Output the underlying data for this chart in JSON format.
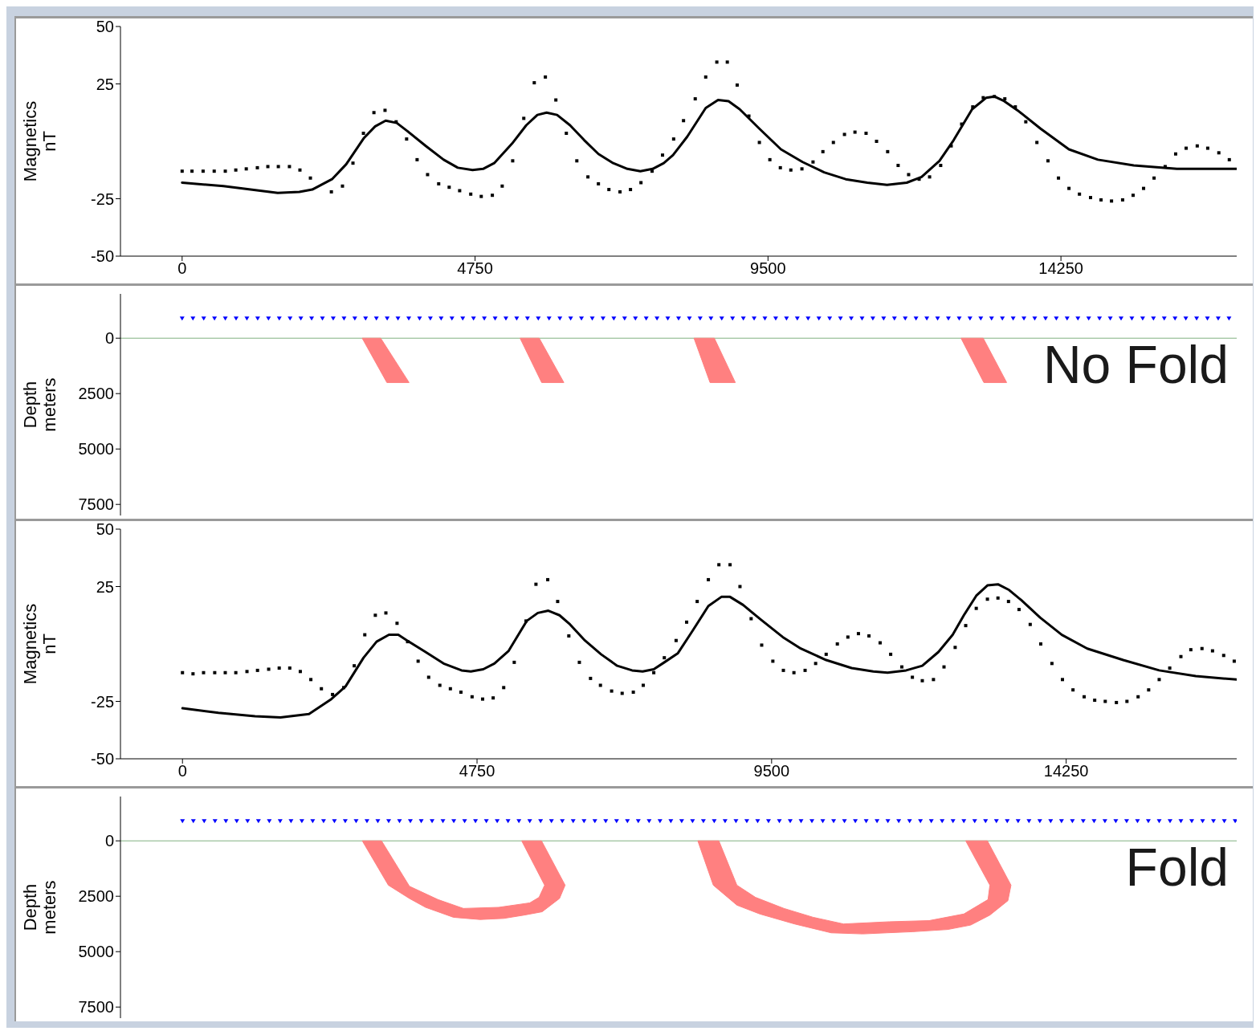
{
  "chart_data": [
    {
      "type": "line",
      "ylabel": "Magnetics\nnT",
      "xlim": [
        -1000,
        17100
      ],
      "xticks": [
        0,
        4750,
        9500,
        14250
      ],
      "ylim": [
        -50,
        50
      ],
      "yticks": [
        -50,
        -25,
        25,
        50
      ],
      "series": [
        {
          "type": "scatter",
          "marker": "square",
          "color": "#000000",
          "x": [
            0,
            160,
            340,
            520,
            700,
            870,
            1040,
            1220,
            1390,
            1560,
            1740,
            1910,
            2080,
            2420,
            2600,
            2770,
            2940,
            3110,
            3290,
            3470,
            3640,
            3810,
            3980,
            4160,
            4330,
            4500,
            4680,
            4850,
            5030,
            5190,
            5360,
            5540,
            5710,
            5890,
            6060,
            6230,
            6400,
            6580,
            6750,
            6920,
            7100,
            7270,
            7440,
            7620,
            7790,
            7970,
            8130,
            8320,
            8490,
            8670,
            8840,
            9000,
            9190,
            9360,
            9530,
            9700,
            9870,
            10050,
            10230,
            10390,
            10560,
            10740,
            10910,
            11090,
            11260,
            11440,
            11610,
            11780,
            11950,
            12120,
            12300,
            12470,
            12640,
            12820,
            12990,
            13170,
            13340,
            13510,
            13680,
            13860,
            14040,
            14210,
            14380,
            14550,
            14730,
            14900,
            15070,
            15250,
            15420,
            15590,
            15760,
            15940,
            16110,
            16280,
            16460,
            16630,
            16810,
            16980
          ],
          "values": [
            -13,
            -13,
            -13,
            -13,
            -13,
            -12.5,
            -12,
            -11.5,
            -11,
            -11,
            -11,
            -12.5,
            -16,
            -22,
            -19.5,
            -9.5,
            3.5,
            12.5,
            13.5,
            8.5,
            1,
            -8,
            -14.5,
            -18.5,
            -20,
            -21.5,
            -23,
            -24,
            -23.5,
            -19.5,
            -8.5,
            10,
            25.5,
            28,
            18,
            3.5,
            -8.5,
            -15.5,
            -18.5,
            -21,
            -22,
            -21,
            -18,
            -13,
            -6,
            1,
            9,
            18.5,
            28,
            34.5,
            34.5,
            24.5,
            11,
            -0.5,
            -8,
            -11.5,
            -12.5,
            -12,
            -9,
            -4.5,
            -0.5,
            3,
            4,
            3.5,
            0,
            -4.5,
            -10.5,
            -14.5,
            -16.5,
            -15.5,
            -10.5,
            -2,
            7.5,
            15,
            19,
            19.5,
            18.5,
            15,
            8.5,
            -0.5,
            -8.5,
            -16,
            -20.5,
            -23,
            -24.5,
            -25.5,
            -26,
            -25.5,
            -23.5,
            -20.5,
            -16,
            -11,
            -5.5,
            -3,
            -2,
            -3,
            -5,
            -8
          ]
        },
        {
          "type": "line",
          "color": "#000000",
          "x": [
            0,
            670,
            1550,
            1900,
            2110,
            2430,
            2660,
            2950,
            3130,
            3300,
            3480,
            3650,
            3950,
            4240,
            4470,
            4710,
            4880,
            5060,
            5350,
            5580,
            5760,
            5910,
            6080,
            6290,
            6520,
            6750,
            6990,
            7220,
            7430,
            7630,
            7810,
            7960,
            8190,
            8490,
            8690,
            8860,
            9040,
            9360,
            9710,
            10060,
            10410,
            10760,
            11110,
            11430,
            11750,
            11990,
            12280,
            12510,
            12810,
            13040,
            13170,
            13330,
            13570,
            13920,
            14380,
            14850,
            15430,
            16130,
            17100
          ],
          "values": [
            -18,
            -19.5,
            -22.5,
            -22,
            -21,
            -16.5,
            -10,
            1.5,
            6.5,
            9,
            8,
            4.5,
            -2,
            -8,
            -11.5,
            -12.5,
            -12,
            -9.5,
            -1,
            7,
            11.5,
            12.5,
            11.5,
            7,
            0.5,
            -5.5,
            -9.5,
            -12,
            -13,
            -12,
            -9.5,
            -6,
            2,
            14.5,
            18,
            17.5,
            14,
            5.5,
            -3.5,
            -9,
            -13.5,
            -16.5,
            -18,
            -19,
            -18,
            -15.5,
            -8.5,
            0.5,
            14,
            19,
            19.5,
            17.5,
            13,
            5.5,
            -3.5,
            -8,
            -10.5,
            -12,
            -12
          ]
        }
      ]
    },
    {
      "type": "scatter",
      "ylabel": "Depth\nmeters",
      "tick_labels": "y",
      "annotations": [
        "No Fold"
      ],
      "xlim": [
        -1000,
        17100
      ],
      "ylim": [
        8000,
        -2000
      ],
      "yticks": [
        0,
        2500,
        5000,
        7500
      ],
      "ref_lines": [
        {
          "axis": "y",
          "value": 0,
          "color": "#80b080"
        }
      ],
      "series": [
        {
          "type": "scatter",
          "marker": "triangle",
          "color": "#0000ff",
          "x": [
            0,
            175,
            350,
            525,
            700,
            875,
            1050,
            1225,
            1400,
            1575,
            1750,
            1925,
            2100,
            2275,
            2450,
            2625,
            2800,
            2975,
            3150,
            3325,
            3500,
            3675,
            3850,
            4025,
            4200,
            4375,
            4550,
            4725,
            4900,
            5075,
            5250,
            5425,
            5600,
            5775,
            5950,
            6125,
            6300,
            6475,
            6650,
            6825,
            7000,
            7175,
            7350,
            7525,
            7700,
            7875,
            8050,
            8225,
            8400,
            8575,
            8750,
            8925,
            9100,
            9275,
            9450,
            9625,
            9800,
            9975,
            10150,
            10325,
            10500,
            10675,
            10850,
            11025,
            11200,
            11375,
            11550,
            11725,
            11900,
            12075,
            12250,
            12425,
            12600,
            12775,
            12950,
            13125,
            13300,
            13475,
            13650,
            13825,
            14000,
            14175,
            14350,
            14525,
            14700,
            14875,
            15050,
            15225,
            15400,
            15575,
            15750,
            15925,
            16100,
            16275,
            16450,
            16625,
            16800,
            16975
          ],
          "values": [
            -900,
            -900,
            -900,
            -900,
            -900,
            -900,
            -900,
            -900,
            -900,
            -900,
            -900,
            -900,
            -900,
            -900,
            -900,
            -900,
            -900,
            -900,
            -900,
            -900,
            -900,
            -900,
            -900,
            -900,
            -900,
            -900,
            -900,
            -900,
            -900,
            -900,
            -900,
            -900,
            -900,
            -900,
            -900,
            -900,
            -900,
            -900,
            -900,
            -900,
            -900,
            -900,
            -900,
            -900,
            -900,
            -900,
            -900,
            -900,
            -900,
            -900,
            -900,
            -900,
            -900,
            -900,
            -900,
            -900,
            -900,
            -900,
            -900,
            -900,
            -900,
            -900,
            -900,
            -900,
            -900,
            -900,
            -900,
            -900,
            -900,
            -900,
            -900,
            -900,
            -900,
            -900,
            -900,
            -900,
            -900,
            -900,
            -900,
            -900,
            -900,
            -900,
            -900,
            -900,
            -900,
            -900,
            -900,
            -900,
            -900,
            -900,
            -900,
            -900,
            -900,
            -900,
            -900,
            -900,
            -900,
            -900
          ]
        },
        {
          "type": "area",
          "color": "#ff8080",
          "x": [
            2920,
            3220,
            3680,
            3320,
            2920
          ],
          "values": [
            0,
            0,
            2000,
            2000,
            0
          ]
        },
        {
          "type": "area",
          "color": "#ff8080",
          "x": [
            5480,
            5790,
            6190,
            5830,
            5480
          ],
          "values": [
            0,
            0,
            2000,
            2000,
            0
          ]
        },
        {
          "type": "area",
          "color": "#ff8080",
          "x": [
            8300,
            8630,
            8970,
            8560,
            8300
          ],
          "values": [
            0,
            0,
            2000,
            2000,
            0
          ]
        },
        {
          "type": "area",
          "color": "#ff8080",
          "x": [
            12630,
            12990,
            13370,
            13000,
            12630
          ],
          "values": [
            0,
            0,
            2000,
            2000,
            0
          ]
        }
      ]
    },
    {
      "type": "line",
      "ylabel": "Magnetics\nnT",
      "xlim": [
        -1000,
        17000
      ],
      "xticks": [
        0,
        4750,
        9500,
        14250
      ],
      "ylim": [
        -50,
        50
      ],
      "yticks": [
        -50,
        -25,
        25,
        50
      ],
      "series": [
        {
          "type": "scatter",
          "marker": "square",
          "color": "#000000",
          "x": [
            0,
            170,
            340,
            520,
            690,
            860,
            1040,
            1210,
            1390,
            1560,
            1730,
            1900,
            2070,
            2240,
            2420,
            2600,
            2770,
            2940,
            3110,
            3280,
            3460,
            3630,
            3800,
            3970,
            4150,
            4320,
            4490,
            4670,
            4840,
            5010,
            5180,
            5350,
            5540,
            5700,
            5890,
            6050,
            6230,
            6400,
            6580,
            6740,
            6920,
            7090,
            7270,
            7430,
            7600,
            7770,
            7960,
            8130,
            8300,
            8480,
            8650,
            8830,
            8990,
            9170,
            9340,
            9520,
            9690,
            9860,
            10040,
            10210,
            10380,
            10560,
            10730,
            10900,
            11070,
            11250,
            11420,
            11600,
            11770,
            11930,
            12110,
            12280,
            12460,
            12630,
            12800,
            12980,
            13150,
            13320,
            13490,
            13670,
            13840,
            14020,
            14190,
            14360,
            14540,
            14710,
            14880,
            15060,
            15230,
            15410,
            15580,
            15750,
            15920,
            16100,
            16260,
            16440,
            16610,
            16790,
            16960
          ],
          "values": [
            -12.5,
            -13,
            -12.5,
            -12.5,
            -12.5,
            -12.5,
            -12,
            -11.5,
            -11,
            -10.5,
            -10.5,
            -12,
            -15.5,
            -19.5,
            -22,
            -19,
            -9.5,
            4,
            12.5,
            13.5,
            9,
            1,
            -7.5,
            -14.5,
            -18,
            -19.5,
            -21,
            -23,
            -24,
            -23.5,
            -19,
            -8,
            10,
            26,
            28,
            18.5,
            3.5,
            -8,
            -15,
            -18,
            -20.5,
            -21.5,
            -21,
            -18,
            -12.5,
            -6,
            1.5,
            9.5,
            18.5,
            28,
            34.5,
            34.5,
            25,
            11,
            -0.5,
            -7.5,
            -11.5,
            -12.5,
            -11.5,
            -8.5,
            -4.5,
            0,
            3,
            4.5,
            3.5,
            0.5,
            -4.5,
            -10,
            -14.5,
            -16,
            -15.5,
            -10,
            -1.5,
            8,
            15.5,
            19.5,
            20,
            18.5,
            15,
            8.5,
            0,
            -8.5,
            -15.5,
            -20,
            -23,
            -24.5,
            -25,
            -25.5,
            -25,
            -23,
            -20,
            -15.5,
            -10.5,
            -5.5,
            -2.5,
            -2,
            -3,
            -5,
            -7.5
          ]
        },
        {
          "type": "line",
          "color": "#000000",
          "x": [
            0,
            580,
            1170,
            1580,
            2040,
            2400,
            2630,
            2920,
            3130,
            3330,
            3480,
            3680,
            3920,
            4210,
            4500,
            4650,
            4850,
            5030,
            5260,
            5550,
            5730,
            5900,
            6080,
            6250,
            6490,
            6750,
            7010,
            7250,
            7420,
            7600,
            7770,
            7990,
            8220,
            8480,
            8690,
            8830,
            9040,
            9330,
            9680,
            9970,
            10380,
            10790,
            11140,
            11370,
            11670,
            11930,
            12190,
            12420,
            12600,
            12800,
            12980,
            13150,
            13330,
            13530,
            13830,
            14180,
            14590,
            15170,
            15750,
            16340,
            17000
          ],
          "values": [
            -28,
            -30,
            -31.5,
            -32,
            -30.5,
            -24,
            -18.5,
            -6,
            1,
            4,
            4,
            0.5,
            -3.5,
            -8.5,
            -11.5,
            -12,
            -11,
            -8.5,
            -3,
            10,
            13.5,
            14.5,
            12.5,
            8.5,
            1.5,
            -4.5,
            -9.5,
            -11.5,
            -12,
            -11,
            -8,
            -4,
            5.5,
            16.5,
            20.5,
            20.5,
            17,
            10.5,
            3,
            -2,
            -7,
            -10.5,
            -12,
            -12.5,
            -11.5,
            -9.5,
            -3.5,
            4,
            12.5,
            21,
            25.5,
            26,
            23.5,
            19,
            11.5,
            4,
            -2,
            -7,
            -11.5,
            -14,
            -15.5
          ]
        }
      ]
    },
    {
      "type": "scatter",
      "ylabel": "Depth\nmeters",
      "tick_labels": "y",
      "annotations": [
        "Fold"
      ],
      "xlim": [
        -1000,
        17000
      ],
      "ylim": [
        8000,
        -2000
      ],
      "yticks": [
        0,
        2500,
        5000,
        7500
      ],
      "ref_lines": [
        {
          "axis": "y",
          "value": 0,
          "color": "#80b080"
        }
      ],
      "series": [
        {
          "type": "scatter",
          "marker": "triangle",
          "color": "#0000ff",
          "x": [
            0,
            175,
            350,
            525,
            700,
            875,
            1050,
            1225,
            1400,
            1575,
            1750,
            1925,
            2100,
            2275,
            2450,
            2625,
            2800,
            2975,
            3150,
            3325,
            3500,
            3675,
            3850,
            4025,
            4200,
            4375,
            4550,
            4725,
            4900,
            5075,
            5250,
            5425,
            5600,
            5775,
            5950,
            6125,
            6300,
            6475,
            6650,
            6825,
            7000,
            7175,
            7350,
            7525,
            7700,
            7875,
            8050,
            8225,
            8400,
            8575,
            8750,
            8925,
            9100,
            9275,
            9450,
            9625,
            9800,
            9975,
            10150,
            10325,
            10500,
            10675,
            10850,
            11025,
            11200,
            11375,
            11550,
            11725,
            11900,
            12075,
            12250,
            12425,
            12600,
            12775,
            12950,
            13125,
            13300,
            13475,
            13650,
            13825,
            14000,
            14175,
            14350,
            14525,
            14700,
            14875,
            15050,
            15225,
            15400,
            15575,
            15750,
            15925,
            16100,
            16275,
            16450,
            16625,
            16800,
            16975
          ],
          "values": [
            -900,
            -900,
            -900,
            -900,
            -900,
            -900,
            -900,
            -900,
            -900,
            -900,
            -900,
            -900,
            -900,
            -900,
            -900,
            -900,
            -900,
            -900,
            -900,
            -900,
            -900,
            -900,
            -900,
            -900,
            -900,
            -900,
            -900,
            -900,
            -900,
            -900,
            -900,
            -900,
            -900,
            -900,
            -900,
            -900,
            -900,
            -900,
            -900,
            -900,
            -900,
            -900,
            -900,
            -900,
            -900,
            -900,
            -900,
            -900,
            -900,
            -900,
            -900,
            -900,
            -900,
            -900,
            -900,
            -900,
            -900,
            -900,
            -900,
            -900,
            -900,
            -900,
            -900,
            -900,
            -900,
            -900,
            -900,
            -900,
            -900,
            -900,
            -900,
            -900,
            -900,
            -900,
            -900,
            -900,
            -900,
            -900,
            -900,
            -900,
            -900,
            -900,
            -900,
            -900,
            -900,
            -900,
            -900,
            -900,
            -900,
            -900,
            -900,
            -900,
            -900,
            -900,
            -900,
            -900,
            -900,
            -900
          ]
        },
        {
          "type": "area",
          "color": "#ff8080",
          "x": [
            2900,
            3320,
            3660,
            3920,
            4370,
            4800,
            5180,
            5510,
            5800,
            6080,
            6170,
            5790,
            5470,
            5840,
            5750,
            5600,
            5100,
            4530,
            4120,
            3660,
            3210,
            2900
          ],
          "values": [
            0,
            2000,
            2600,
            3000,
            3450,
            3550,
            3500,
            3350,
            3200,
            2600,
            2000,
            0,
            0,
            2000,
            2550,
            2800,
            3000,
            3050,
            2650,
            2050,
            0,
            0
          ]
        },
        {
          "type": "area",
          "color": "#ff8080",
          "x": [
            8310,
            8560,
            8940,
            9310,
            9870,
            10460,
            10970,
            11360,
            11780,
            12340,
            12710,
            13020,
            13310,
            13360,
            12980,
            12630,
            13020,
            12990,
            12600,
            12040,
            11400,
            10660,
            10170,
            9700,
            9240,
            8940,
            8650,
            8310
          ],
          "values": [
            0,
            2000,
            2900,
            3300,
            3750,
            4150,
            4200,
            4150,
            4100,
            4000,
            3800,
            3350,
            2700,
            2000,
            0,
            0,
            2000,
            2650,
            3300,
            3600,
            3650,
            3750,
            3450,
            3050,
            2550,
            2000,
            0,
            0
          ]
        }
      ]
    }
  ]
}
